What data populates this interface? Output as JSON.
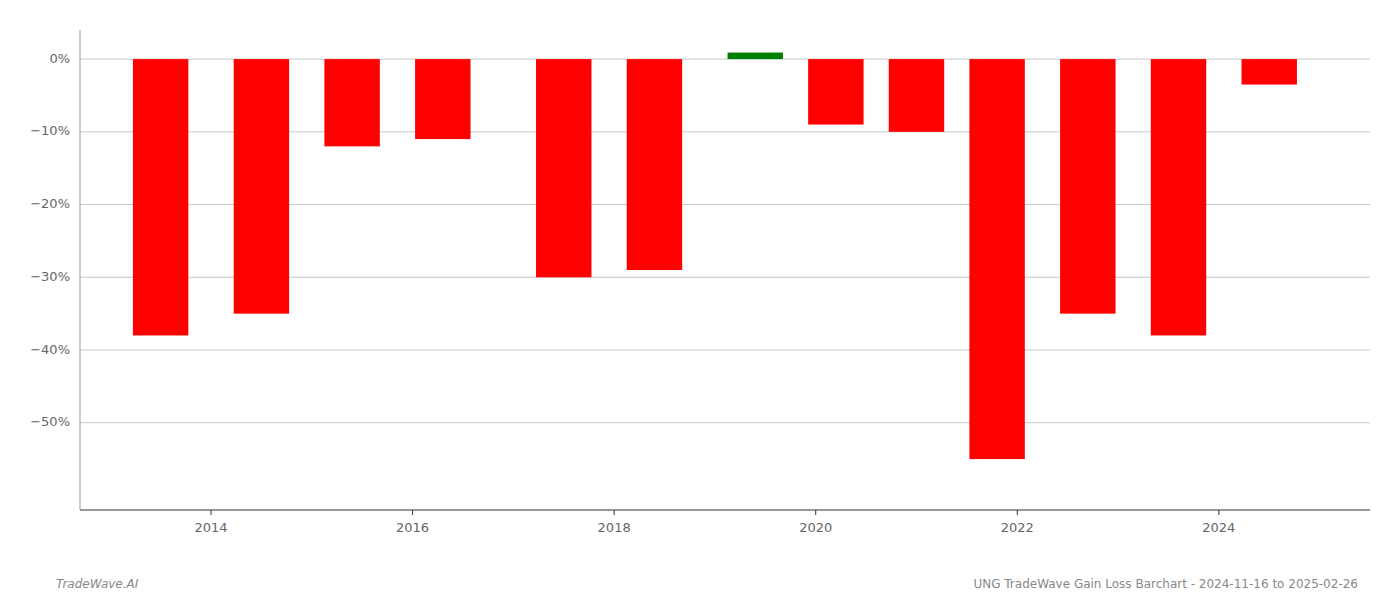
{
  "chart_data": {
    "type": "bar",
    "x": [
      2013.5,
      2014.5,
      2015.4,
      2016.3,
      2017.5,
      2018.4,
      2019.4,
      2020.2,
      2021.0,
      2021.8,
      2022.7,
      2023.6,
      2024.5
    ],
    "values": [
      -38.0,
      -35.0,
      -12.0,
      -11.0,
      -30.0,
      -29.0,
      0.9,
      -9.0,
      -10.0,
      -55.0,
      -35.0,
      -38.0,
      -3.5
    ],
    "colors": [
      "#ff0000",
      "#ff0000",
      "#ff0000",
      "#ff0000",
      "#ff0000",
      "#ff0000",
      "#008000",
      "#ff0000",
      "#ff0000",
      "#ff0000",
      "#ff0000",
      "#ff0000",
      "#ff0000"
    ],
    "ylim": [
      -62,
      4
    ],
    "yticks": [
      {
        "value": 0,
        "label": "0%"
      },
      {
        "value": -10,
        "label": "−10%"
      },
      {
        "value": -20,
        "label": "−20%"
      },
      {
        "value": -30,
        "label": "−30%"
      },
      {
        "value": -40,
        "label": "−40%"
      },
      {
        "value": -50,
        "label": "−50%"
      }
    ],
    "xlim": [
      2012.7,
      2025.5
    ],
    "xticks": [
      2014,
      2016,
      2018,
      2020,
      2022,
      2024
    ],
    "xlabel": "UNG TradeWave Gain Loss Barchart - 2024-11-16 to 2025-02-26",
    "annotations": [
      "TradeWave.AI"
    ],
    "grid": true
  }
}
